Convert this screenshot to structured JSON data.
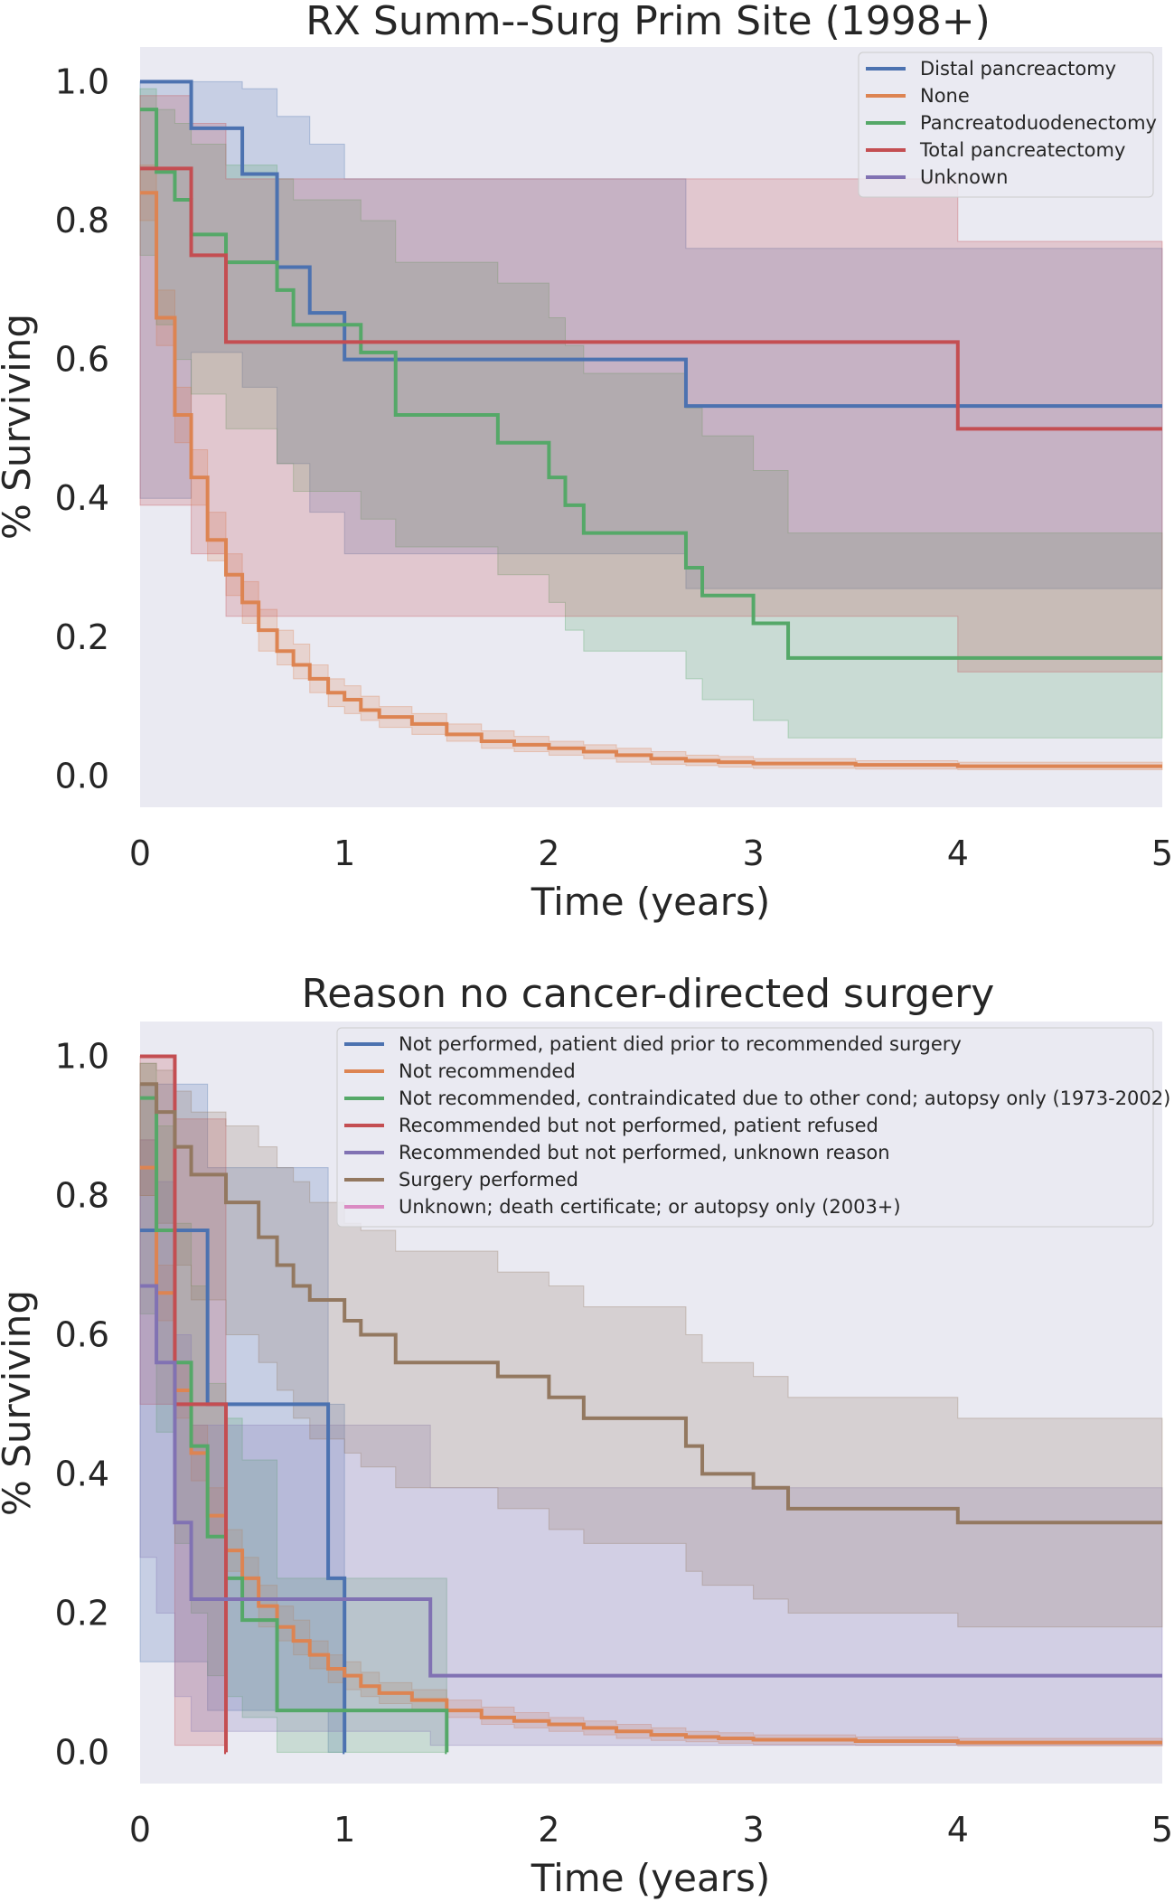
{
  "chart_data": [
    {
      "type": "line",
      "subtype": "kaplan-meier-step",
      "title": "RX Summ--Surg Prim Site (1998+)",
      "xlabel": "Time (years)",
      "ylabel": "% Surviving",
      "xlim": [
        0,
        5
      ],
      "ylim": [
        -0.045,
        1.05
      ],
      "xticks": [
        "0",
        "1",
        "2",
        "3",
        "4",
        "5"
      ],
      "yticks": [
        "0.0",
        "0.2",
        "0.4",
        "0.6",
        "0.8",
        "1.0"
      ],
      "grid": false,
      "legend_position": "top-right",
      "series": [
        {
          "name": "Distal pancreactomy",
          "color": "#4c72b0",
          "x": [
            0,
            0.25,
            0.5,
            0.67,
            0.83,
            1.0,
            2.67,
            5.0
          ],
          "y": [
            1.0,
            0.933,
            0.867,
            0.733,
            0.667,
            0.6,
            0.533,
            0.533
          ],
          "ci_lower": [
            0.4,
            0.61,
            0.56,
            0.45,
            0.38,
            0.32,
            0.27,
            0.27
          ],
          "ci_upper": [
            1.0,
            1.0,
            0.99,
            0.95,
            0.91,
            0.86,
            0.76,
            0.76
          ]
        },
        {
          "name": "None",
          "color": "#dd8452",
          "x": [
            0,
            0.08,
            0.17,
            0.25,
            0.33,
            0.42,
            0.5,
            0.58,
            0.67,
            0.75,
            0.83,
            0.92,
            1.0,
            1.08,
            1.17,
            1.33,
            1.5,
            1.67,
            1.83,
            2.0,
            2.17,
            2.33,
            2.5,
            2.67,
            2.83,
            3.0,
            3.5,
            4.0,
            5.0
          ],
          "y": [
            0.84,
            0.66,
            0.52,
            0.43,
            0.34,
            0.29,
            0.25,
            0.21,
            0.18,
            0.16,
            0.14,
            0.12,
            0.11,
            0.095,
            0.085,
            0.075,
            0.06,
            0.05,
            0.045,
            0.04,
            0.035,
            0.03,
            0.025,
            0.022,
            0.02,
            0.018,
            0.016,
            0.014,
            0.014
          ],
          "ci_lower": [
            0.8,
            0.62,
            0.48,
            0.39,
            0.31,
            0.26,
            0.22,
            0.18,
            0.16,
            0.14,
            0.12,
            0.1,
            0.09,
            0.08,
            0.07,
            0.06,
            0.05,
            0.04,
            0.035,
            0.03,
            0.025,
            0.02,
            0.017,
            0.015,
            0.013,
            0.011,
            0.01,
            0.009,
            0.009
          ],
          "ci_upper": [
            0.88,
            0.7,
            0.56,
            0.47,
            0.38,
            0.32,
            0.28,
            0.24,
            0.21,
            0.19,
            0.16,
            0.14,
            0.13,
            0.115,
            0.1,
            0.09,
            0.075,
            0.065,
            0.057,
            0.05,
            0.045,
            0.04,
            0.035,
            0.03,
            0.028,
            0.025,
            0.022,
            0.02,
            0.02
          ]
        },
        {
          "name": "Pancreatoduodenectomy",
          "color": "#55a868",
          "x": [
            0,
            0.08,
            0.17,
            0.25,
            0.42,
            0.67,
            0.75,
            1.0,
            1.08,
            1.25,
            1.75,
            2.0,
            2.08,
            2.17,
            2.67,
            2.75,
            3.0,
            3.17,
            5.0
          ],
          "y": [
            0.96,
            0.87,
            0.83,
            0.78,
            0.74,
            0.7,
            0.65,
            0.65,
            0.61,
            0.52,
            0.48,
            0.43,
            0.39,
            0.35,
            0.3,
            0.26,
            0.22,
            0.17,
            0.17
          ],
          "ci_lower": [
            0.75,
            0.65,
            0.6,
            0.55,
            0.5,
            0.45,
            0.41,
            0.41,
            0.37,
            0.33,
            0.29,
            0.25,
            0.21,
            0.18,
            0.14,
            0.11,
            0.08,
            0.055,
            0.055
          ],
          "ci_upper": [
            0.99,
            0.96,
            0.94,
            0.91,
            0.88,
            0.86,
            0.83,
            0.83,
            0.8,
            0.74,
            0.71,
            0.66,
            0.62,
            0.58,
            0.53,
            0.49,
            0.44,
            0.35,
            0.35
          ]
        },
        {
          "name": "Total pancreatectomy",
          "color": "#c44e52",
          "x": [
            0,
            0.25,
            0.42,
            4.0,
            5.0
          ],
          "y": [
            0.875,
            0.75,
            0.625,
            0.5,
            0.5
          ],
          "ci_lower": [
            0.39,
            0.32,
            0.23,
            0.15,
            0.15
          ],
          "ci_upper": [
            0.98,
            0.94,
            0.86,
            0.77,
            0.77
          ]
        },
        {
          "name": "Unknown",
          "color": "#8172b3",
          "x": [],
          "y": []
        }
      ]
    },
    {
      "type": "line",
      "subtype": "kaplan-meier-step",
      "title": "Reason no cancer-directed surgery",
      "xlabel": "Time (years)",
      "ylabel": "% Surviving",
      "xlim": [
        0,
        5
      ],
      "ylim": [
        -0.045,
        1.05
      ],
      "xticks": [
        "0",
        "1",
        "2",
        "3",
        "4",
        "5"
      ],
      "yticks": [
        "0.0",
        "0.2",
        "0.4",
        "0.6",
        "0.8",
        "1.0"
      ],
      "grid": false,
      "legend_position": "top-right",
      "series": [
        {
          "name": "Not performed, patient died prior to recommended surgery",
          "color": "#4c72b0",
          "x": [
            0,
            0.33,
            0.92,
            1.0,
            1.0001
          ],
          "y": [
            0.75,
            0.5,
            0.25,
            0.0,
            0.0
          ],
          "ci_lower": [
            0.13,
            0.06,
            0.0,
            0.0,
            0.0
          ],
          "ci_upper": [
            0.96,
            0.84,
            0.5,
            0.0,
            0.0
          ]
        },
        {
          "name": "Not recommended",
          "color": "#dd8452",
          "x": [
            0,
            0.08,
            0.17,
            0.25,
            0.33,
            0.42,
            0.5,
            0.58,
            0.67,
            0.75,
            0.83,
            0.92,
            1.0,
            1.08,
            1.17,
            1.33,
            1.5,
            1.67,
            1.83,
            2.0,
            2.17,
            2.33,
            2.5,
            2.67,
            2.83,
            3.0,
            3.5,
            4.0,
            5.0
          ],
          "y": [
            0.84,
            0.66,
            0.52,
            0.43,
            0.34,
            0.29,
            0.25,
            0.21,
            0.18,
            0.16,
            0.14,
            0.12,
            0.11,
            0.095,
            0.085,
            0.075,
            0.06,
            0.05,
            0.045,
            0.04,
            0.035,
            0.03,
            0.025,
            0.022,
            0.02,
            0.018,
            0.016,
            0.014,
            0.014
          ],
          "ci_lower": [
            0.8,
            0.62,
            0.48,
            0.39,
            0.31,
            0.26,
            0.22,
            0.18,
            0.16,
            0.14,
            0.12,
            0.1,
            0.09,
            0.08,
            0.07,
            0.06,
            0.05,
            0.04,
            0.035,
            0.03,
            0.025,
            0.02,
            0.017,
            0.015,
            0.013,
            0.011,
            0.01,
            0.009,
            0.009
          ],
          "ci_upper": [
            0.88,
            0.7,
            0.56,
            0.47,
            0.38,
            0.32,
            0.28,
            0.24,
            0.21,
            0.19,
            0.16,
            0.14,
            0.13,
            0.115,
            0.1,
            0.09,
            0.075,
            0.065,
            0.057,
            0.05,
            0.045,
            0.04,
            0.035,
            0.03,
            0.028,
            0.025,
            0.022,
            0.02,
            0.02
          ]
        },
        {
          "name": "Not recommended, contraindicated due to other cond; autopsy only (1973-2002)",
          "color": "#55a868",
          "x": [
            0,
            0.08,
            0.17,
            0.25,
            0.33,
            0.42,
            0.5,
            0.67,
            1.5,
            1.5001
          ],
          "y": [
            0.94,
            0.75,
            0.56,
            0.44,
            0.31,
            0.25,
            0.19,
            0.06,
            0.0,
            0.0
          ],
          "ci_lower": [
            0.63,
            0.46,
            0.3,
            0.2,
            0.11,
            0.08,
            0.05,
            0.0,
            0.0,
            0.0
          ],
          "ci_upper": [
            0.99,
            0.9,
            0.76,
            0.67,
            0.53,
            0.48,
            0.42,
            0.25,
            0.0,
            0.0
          ]
        },
        {
          "name": "Recommended but not performed, patient refused",
          "color": "#c44e52",
          "x": [
            0,
            0.17,
            0.42,
            0.4201
          ],
          "y": [
            1.0,
            0.5,
            0.0,
            0.0
          ],
          "ci_lower": [
            0.5,
            0.01,
            0.0,
            0.0
          ],
          "ci_upper": [
            1.0,
            0.91,
            0.0,
            0.0
          ]
        },
        {
          "name": "Recommended but not performed, unknown reason",
          "color": "#8172b3",
          "x": [
            0,
            0.08,
            0.17,
            0.25,
            1.42,
            5.0
          ],
          "y": [
            0.67,
            0.56,
            0.33,
            0.22,
            0.11,
            0.11
          ],
          "ci_lower": [
            0.28,
            0.2,
            0.08,
            0.03,
            0.01,
            0.01
          ],
          "ci_upper": [
            0.88,
            0.82,
            0.6,
            0.47,
            0.38,
            0.38
          ]
        },
        {
          "name": "Surgery performed",
          "color": "#937860",
          "x": [
            0,
            0.08,
            0.17,
            0.25,
            0.42,
            0.58,
            0.67,
            0.75,
            0.83,
            1.0,
            1.08,
            1.25,
            1.75,
            2.0,
            2.17,
            2.67,
            2.75,
            3.0,
            3.17,
            4.0,
            5.0
          ],
          "y": [
            0.96,
            0.92,
            0.87,
            0.83,
            0.79,
            0.74,
            0.7,
            0.67,
            0.65,
            0.62,
            0.6,
            0.56,
            0.54,
            0.51,
            0.48,
            0.44,
            0.4,
            0.38,
            0.35,
            0.33,
            0.33
          ],
          "ci_lower": [
            0.8,
            0.76,
            0.7,
            0.65,
            0.6,
            0.56,
            0.52,
            0.48,
            0.45,
            0.43,
            0.41,
            0.38,
            0.35,
            0.32,
            0.3,
            0.26,
            0.24,
            0.22,
            0.2,
            0.18,
            0.18
          ],
          "ci_upper": [
            0.99,
            0.98,
            0.95,
            0.92,
            0.9,
            0.87,
            0.84,
            0.82,
            0.79,
            0.76,
            0.75,
            0.72,
            0.69,
            0.67,
            0.64,
            0.6,
            0.56,
            0.54,
            0.51,
            0.48,
            0.48
          ]
        },
        {
          "name": "Unknown; death certificate; or autopsy only (2003+)",
          "color": "#da8bc3",
          "x": [],
          "y": []
        }
      ]
    }
  ]
}
